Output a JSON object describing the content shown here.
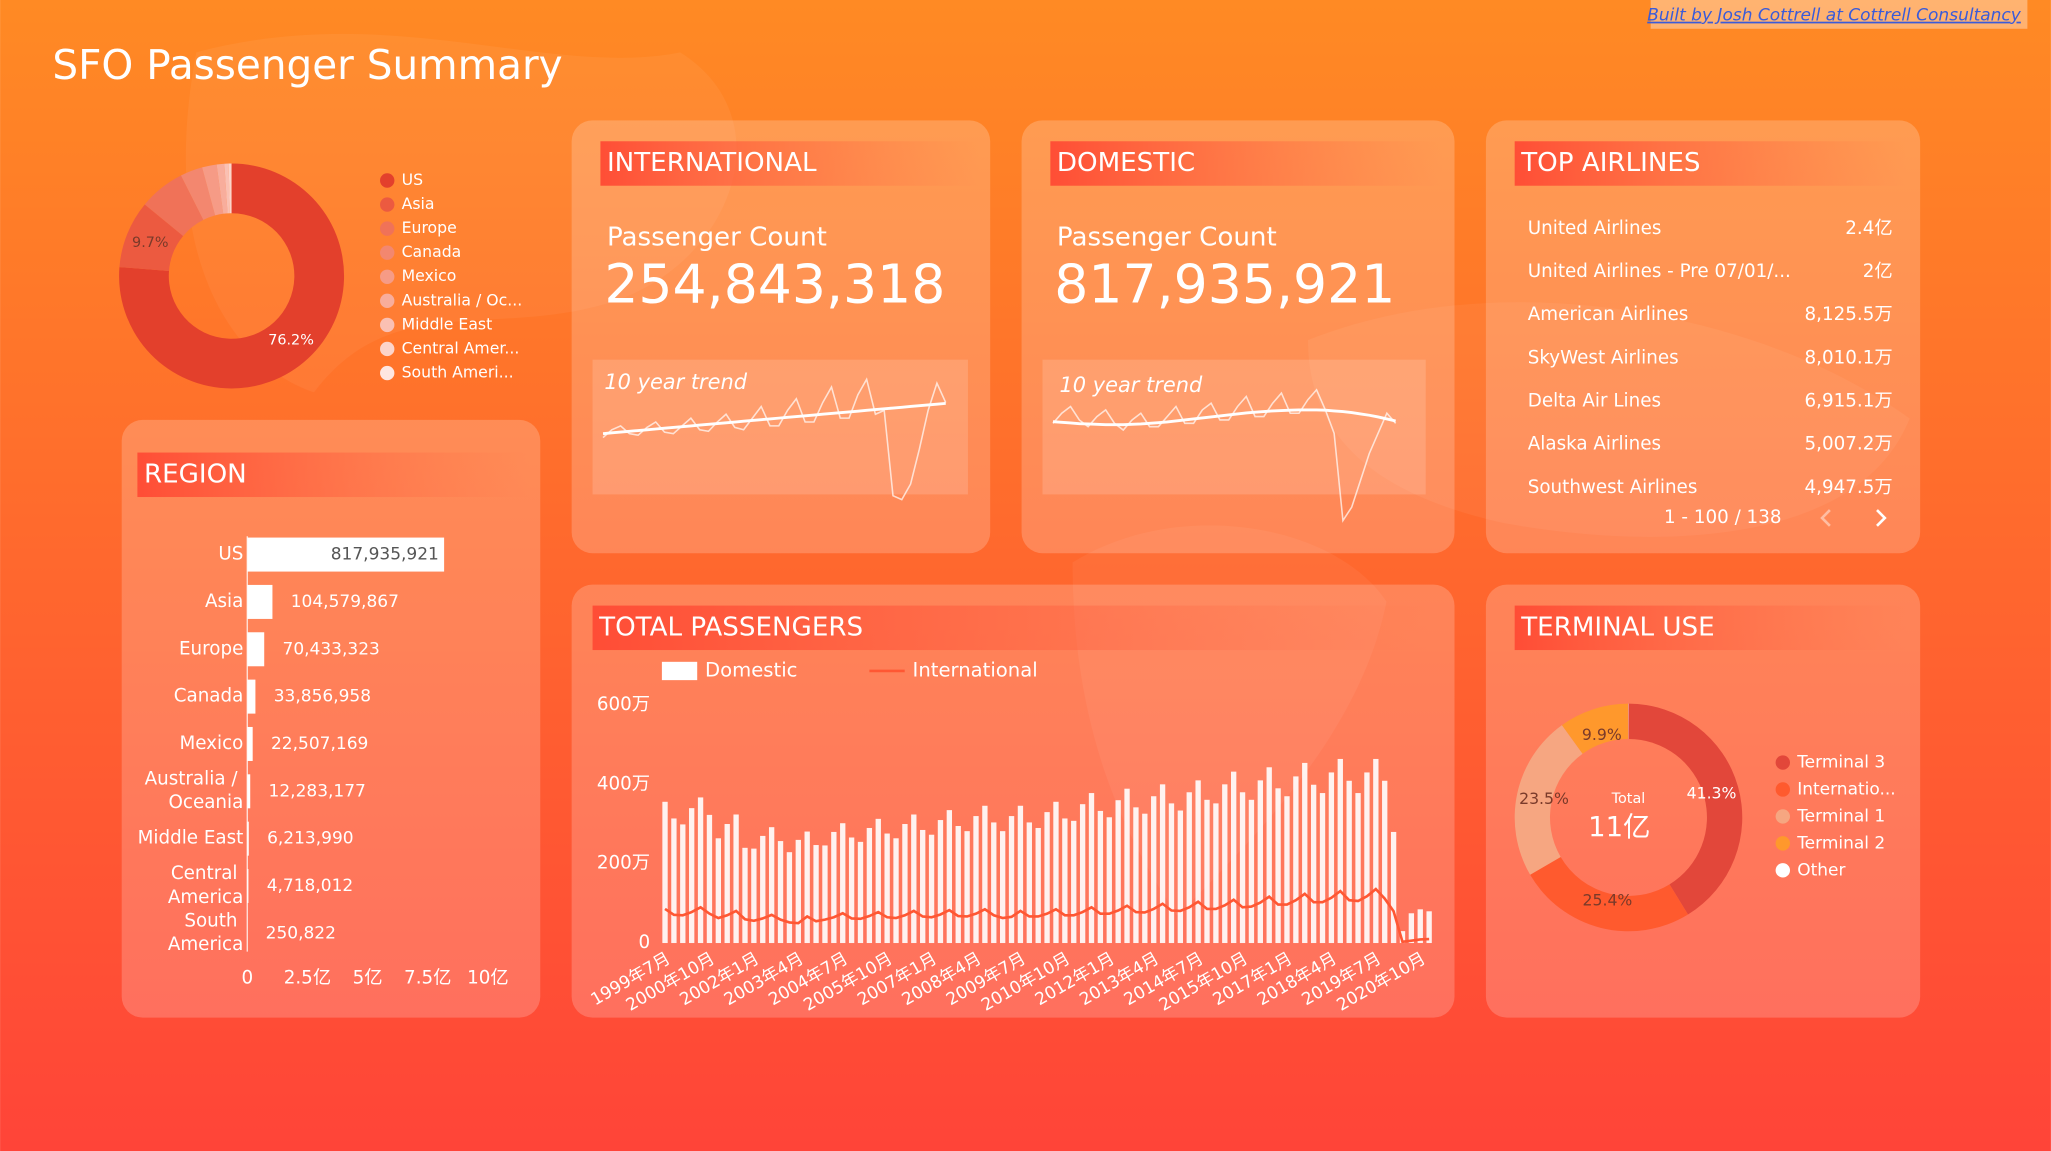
{
  "header": {
    "title": "SFO Passenger Summary",
    "credit": "Built by Josh Cottrell at Cottrell Consultancy"
  },
  "kpis": [
    {
      "title": "INTERNATIONAL",
      "label": "Passenger Count",
      "value": "254,843,318"
    },
    {
      "title": "DOMESTIC",
      "label": "Passenger Count",
      "value": "817,935,921"
    }
  ],
  "top_airlines": {
    "title": "TOP AIRLINES",
    "rows": [
      [
        "United Airlines",
        "2.4亿"
      ],
      [
        "United Airlines - Pre 07/01/...",
        "2亿"
      ],
      [
        "American Airlines",
        "8,125.5万"
      ],
      [
        "SkyWest Airlines",
        "8,010.1万"
      ],
      [
        "Delta Air Lines",
        "6,915.1万"
      ],
      [
        "Alaska Airlines",
        "5,007.2万"
      ],
      [
        "Southwest Airlines",
        "4,947.5万"
      ]
    ],
    "pagination": "1 - 100 / 138"
  },
  "chart_data": [
    {
      "type": "pie",
      "categories": [
        "US",
        "Asia",
        "Europe",
        "Canada",
        "Mexico",
        "Australia / Oc...",
        "Middle East",
        "Central Amer...",
        "South Ameri..."
      ],
      "values": [
        76.2,
        9.7,
        6.6,
        3.2,
        2.1,
        1.1,
        0.6,
        0.4,
        0.02
      ],
      "value_labels": [
        "76.2%",
        "9.7%",
        null,
        null,
        null,
        null,
        null,
        null,
        null
      ],
      "colors": [
        "#e3402c",
        "#ec5a40",
        "#f07258",
        "#f3876f",
        "#f69b86",
        "#f8ad9c",
        "#fac0b3",
        "#fcd4ca",
        "#fee6e0"
      ],
      "legend": "right"
    },
    {
      "type": "bar",
      "orientation": "horizontal",
      "title": "REGION",
      "categories": [
        "US",
        "Asia",
        "Europe",
        "Canada",
        "Mexico",
        "Australia / Oceania",
        "Middle East",
        "Central America",
        "South America"
      ],
      "values": [
        817935921,
        104579867,
        70433323,
        33856958,
        22507169,
        12283177,
        6213990,
        4718012,
        250822
      ],
      "value_labels": [
        "817,935,921",
        "104,579,867",
        "70,433,323",
        "33,856,958",
        "22,507,169",
        "12,283,177",
        "6,213,990",
        "4,718,012",
        "250,822"
      ],
      "color": "#ffffff",
      "xlim": [
        0,
        1000000000
      ],
      "xticks": [
        0,
        {
          "value": 250000000,
          "label": "2.5亿"
        },
        {
          "value": 500000000,
          "label": "5亿"
        },
        {
          "value": 750000000,
          "label": "7.5亿"
        },
        {
          "value": 1000000000,
          "label": "10亿"
        }
      ]
    },
    {
      "type": "line",
      "subtitle": "10 year trend",
      "values": [
        0.85,
        0.95,
        1.0,
        0.9,
        0.88,
        0.98,
        1.05,
        0.92,
        0.9,
        1.0,
        1.1,
        0.95,
        0.93,
        1.05,
        1.15,
        0.98,
        0.95,
        1.1,
        1.25,
        1.0,
        1.0,
        1.2,
        1.35,
        1.05,
        1.05,
        1.3,
        1.5,
        1.1,
        1.1,
        1.4,
        1.6,
        1.15,
        1.2,
        0.1,
        0.05,
        0.25,
        0.7,
        1.2,
        1.55,
        1.3
      ],
      "trend": [
        0.9,
        0.91,
        0.92,
        0.93,
        0.94,
        0.95,
        0.96,
        0.97,
        0.98,
        0.99,
        1.0,
        1.01,
        1.02,
        1.03,
        1.04,
        1.05,
        1.06,
        1.07,
        1.08,
        1.09,
        1.1,
        1.11,
        1.12,
        1.13,
        1.14,
        1.15,
        1.16,
        1.17,
        1.18,
        1.19,
        1.2,
        1.21,
        1.22,
        1.23,
        1.24,
        1.25,
        1.26,
        1.27,
        1.28,
        1.29
      ]
    },
    {
      "type": "line",
      "subtitle": "10 year trend",
      "values": [
        3.3,
        3.6,
        3.8,
        3.4,
        3.2,
        3.5,
        3.7,
        3.3,
        3.1,
        3.4,
        3.6,
        3.2,
        3.2,
        3.5,
        3.8,
        3.3,
        3.3,
        3.7,
        3.9,
        3.4,
        3.4,
        3.8,
        4.1,
        3.5,
        3.5,
        3.9,
        4.2,
        3.6,
        3.6,
        4.0,
        4.3,
        3.7,
        3.0,
        0.4,
        0.8,
        1.6,
        2.4,
        3.0,
        3.6,
        3.3
      ],
      "trend": [
        3.35,
        3.33,
        3.31,
        3.29,
        3.28,
        3.27,
        3.26,
        3.26,
        3.26,
        3.27,
        3.28,
        3.3,
        3.32,
        3.34,
        3.37,
        3.4,
        3.43,
        3.46,
        3.49,
        3.52,
        3.55,
        3.58,
        3.61,
        3.63,
        3.65,
        3.67,
        3.68,
        3.69,
        3.7,
        3.7,
        3.7,
        3.69,
        3.67,
        3.65,
        3.62,
        3.58,
        3.54,
        3.49,
        3.43,
        3.37
      ]
    },
    {
      "type": "bar",
      "title": "TOTAL PASSENGERS",
      "categories": [
        "1999年7月",
        null,
        null,
        null,
        null,
        "2000年10月",
        null,
        null,
        null,
        null,
        "2002年1月",
        null,
        null,
        null,
        null,
        "2003年4月",
        null,
        null,
        null,
        null,
        "2004年7月",
        null,
        null,
        null,
        null,
        "2005年10月",
        null,
        null,
        null,
        null,
        "2007年1月",
        null,
        null,
        null,
        null,
        "2008年4月",
        null,
        null,
        null,
        null,
        "2009年7月",
        null,
        null,
        null,
        null,
        "2010年10月",
        null,
        null,
        null,
        null,
        "2012年1月",
        null,
        null,
        null,
        null,
        "2013年4月",
        null,
        null,
        null,
        null,
        "2014年7月",
        null,
        null,
        null,
        null,
        "2015年10月",
        null,
        null,
        null,
        null,
        "2017年1月",
        null,
        null,
        null,
        null,
        "2018年4月",
        null,
        null,
        null,
        null,
        "2019年7月",
        null,
        null,
        null,
        null,
        "2020年10月",
        null
      ],
      "series": [
        {
          "name": "Domestic",
          "color": "#ffffff",
          "mark": "bar",
          "values": [
            3560000,
            3140000,
            2990000,
            3400000,
            3670000,
            3230000,
            2640000,
            3000000,
            3240000,
            2400000,
            2380000,
            2700000,
            2920000,
            2570000,
            2290000,
            2600000,
            2810000,
            2470000,
            2460000,
            2800000,
            3020000,
            2660000,
            2550000,
            2900000,
            3130000,
            2760000,
            2640000,
            3000000,
            3240000,
            2850000,
            2730000,
            3100000,
            3350000,
            2950000,
            2820000,
            3200000,
            3460000,
            3040000,
            2820000,
            3200000,
            3460000,
            3040000,
            2900000,
            3300000,
            3560000,
            3140000,
            3080000,
            3500000,
            3780000,
            3330000,
            3170000,
            3600000,
            3890000,
            3420000,
            3260000,
            3700000,
            4000000,
            3520000,
            3340000,
            3800000,
            4100000,
            3610000,
            3520000,
            4000000,
            4320000,
            3800000,
            3610000,
            4100000,
            4430000,
            3900000,
            3700000,
            4200000,
            4540000,
            3990000,
            3780000,
            4300000,
            4640000,
            4090000,
            3780000,
            4300000,
            4640000,
            4090000,
            2800000,
            300000,
            750000,
            850000,
            800000
          ]
        },
        {
          "name": "International",
          "color": "#ff5733",
          "mark": "line",
          "values": [
            860000,
            710000,
            700000,
            780000,
            900000,
            740000,
            630000,
            700000,
            810000,
            600000,
            560000,
            620000,
            710000,
            590000,
            520000,
            500000,
            670000,
            550000,
            590000,
            650000,
            750000,
            620000,
            610000,
            680000,
            780000,
            650000,
            630000,
            700000,
            810000,
            670000,
            650000,
            720000,
            830000,
            680000,
            670000,
            740000,
            850000,
            700000,
            630000,
            660000,
            810000,
            670000,
            670000,
            740000,
            850000,
            700000,
            700000,
            780000,
            900000,
            740000,
            740000,
            820000,
            940000,
            780000,
            770000,
            860000,
            990000,
            820000,
            810000,
            900000,
            1040000,
            860000,
            860000,
            950000,
            1090000,
            900000,
            920000,
            1020000,
            1170000,
            970000,
            970000,
            1080000,
            1240000,
            1030000,
            1030000,
            1140000,
            1310000,
            1080000,
            1060000,
            1180000,
            1360000,
            1120000,
            800000,
            30000,
            60000,
            90000,
            100000
          ]
        }
      ],
      "ylim": [
        0,
        6000000
      ],
      "yticks": [
        0,
        {
          "value": 2000000,
          "label": "200万"
        },
        {
          "value": 4000000,
          "label": "400万"
        },
        {
          "value": 6000000,
          "label": "600万"
        }
      ],
      "legend": "top"
    },
    {
      "type": "pie",
      "title": "TERMINAL USE",
      "categories": [
        "Terminal 3",
        "Internatio...",
        "Terminal 1",
        "Terminal 2",
        "Other"
      ],
      "values": [
        41.3,
        25.4,
        23.5,
        9.9,
        0.05
      ],
      "value_labels": [
        "41.3%",
        "25.4%",
        "23.5%",
        "9.9%",
        null
      ],
      "colors": [
        "#e2473a",
        "#ff5a2e",
        "#f6a681",
        "#ff982c",
        "#ffffff"
      ],
      "center_label": "Total",
      "center_value": "11亿",
      "legend": "right"
    }
  ]
}
